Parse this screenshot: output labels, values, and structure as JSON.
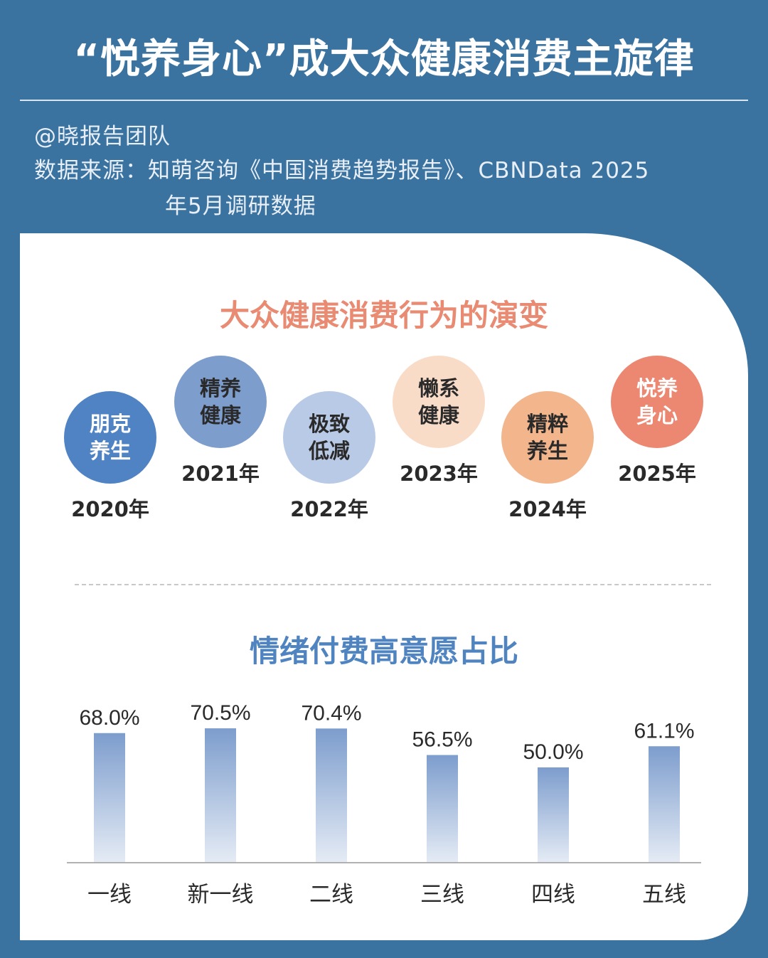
{
  "header": {
    "title": "“悦养身心”成大众健康消费主旋律",
    "author": "@晓报告团队",
    "source_line1": "数据来源：知萌咨询《中国消费趋势报告》、CBNData 2025",
    "source_line2": "年5月调研数据"
  },
  "timeline": {
    "title": "大众健康消费行为的演变",
    "items": [
      {
        "label": "朋克养生",
        "year": "2020年",
        "color": "#5083c4",
        "text_color": "#ffffff"
      },
      {
        "label": "精养健康",
        "year": "2021年",
        "color": "#7d9dcd",
        "text_color": "#2a2a2a"
      },
      {
        "label": "极致低减",
        "year": "2022年",
        "color": "#b9cae6",
        "text_color": "#2a2a2a"
      },
      {
        "label": "懒系健康",
        "year": "2023年",
        "color": "#f9dcc8",
        "text_color": "#2a2a2a"
      },
      {
        "label": "精粹养生",
        "year": "2024年",
        "color": "#f3b58c",
        "text_color": "#2a2a2a"
      },
      {
        "label": "悦养身心",
        "year": "2025年",
        "color": "#ec8771",
        "text_color": "#ffffff"
      }
    ]
  },
  "chart_data": {
    "type": "bar",
    "title": "情绪付费高意愿占比",
    "categories": [
      "一线",
      "新一线",
      "二线",
      "三线",
      "四线",
      "五线"
    ],
    "values": [
      68.0,
      70.5,
      70.4,
      56.5,
      50.0,
      61.1
    ],
    "labels": [
      "68.0%",
      "70.5%",
      "70.4%",
      "56.5%",
      "50.0%",
      "61.1%"
    ],
    "unit": "%",
    "bar_color": "#7d9dcd",
    "grid": false
  }
}
